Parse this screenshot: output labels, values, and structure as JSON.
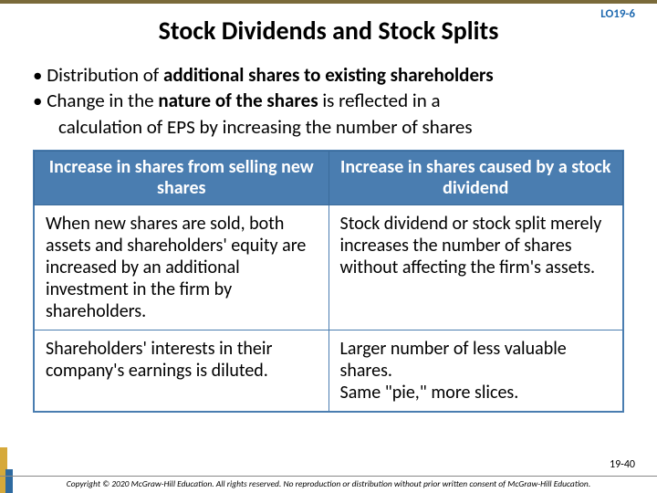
{
  "lo": "LO19-6",
  "title": "Stock Dividends and Stock Splits",
  "bullets": {
    "b1_prefix": "• Distribution of ",
    "b1_bold": "additional shares to existing shareholders",
    "b2_prefix": "• Change in the ",
    "b2_bold": "nature of the shares",
    "b2_suffix": " is reflected in a",
    "b2_cont": "calculation of EPS by increasing the number of shares"
  },
  "table": {
    "h1": "Increase in shares from selling new shares",
    "h2": "Increase in shares caused by a stock dividend",
    "r1c1": "When new shares are sold, both assets and shareholders' equity are increased by an additional investment in the firm by shareholders.",
    "r1c2": "Stock dividend or stock split merely increases the number of shares without affecting the firm's assets.",
    "r2c1": "Shareholders' interests in their company's earnings is diluted.",
    "r2c2": "Larger number of less valuable shares.\nSame \"pie,\" more slices."
  },
  "page_num": "19-40",
  "copyright": "Copyright © 2020 McGraw-Hill Education. All rights reserved. No reproduction or distribution without prior written consent of McGraw-Hill Education.",
  "colors": {
    "header_bg": "#4a7db0",
    "border": "#4a7db0",
    "top_border": "#7a6a3a",
    "lo_color": "#1f6ab0"
  }
}
